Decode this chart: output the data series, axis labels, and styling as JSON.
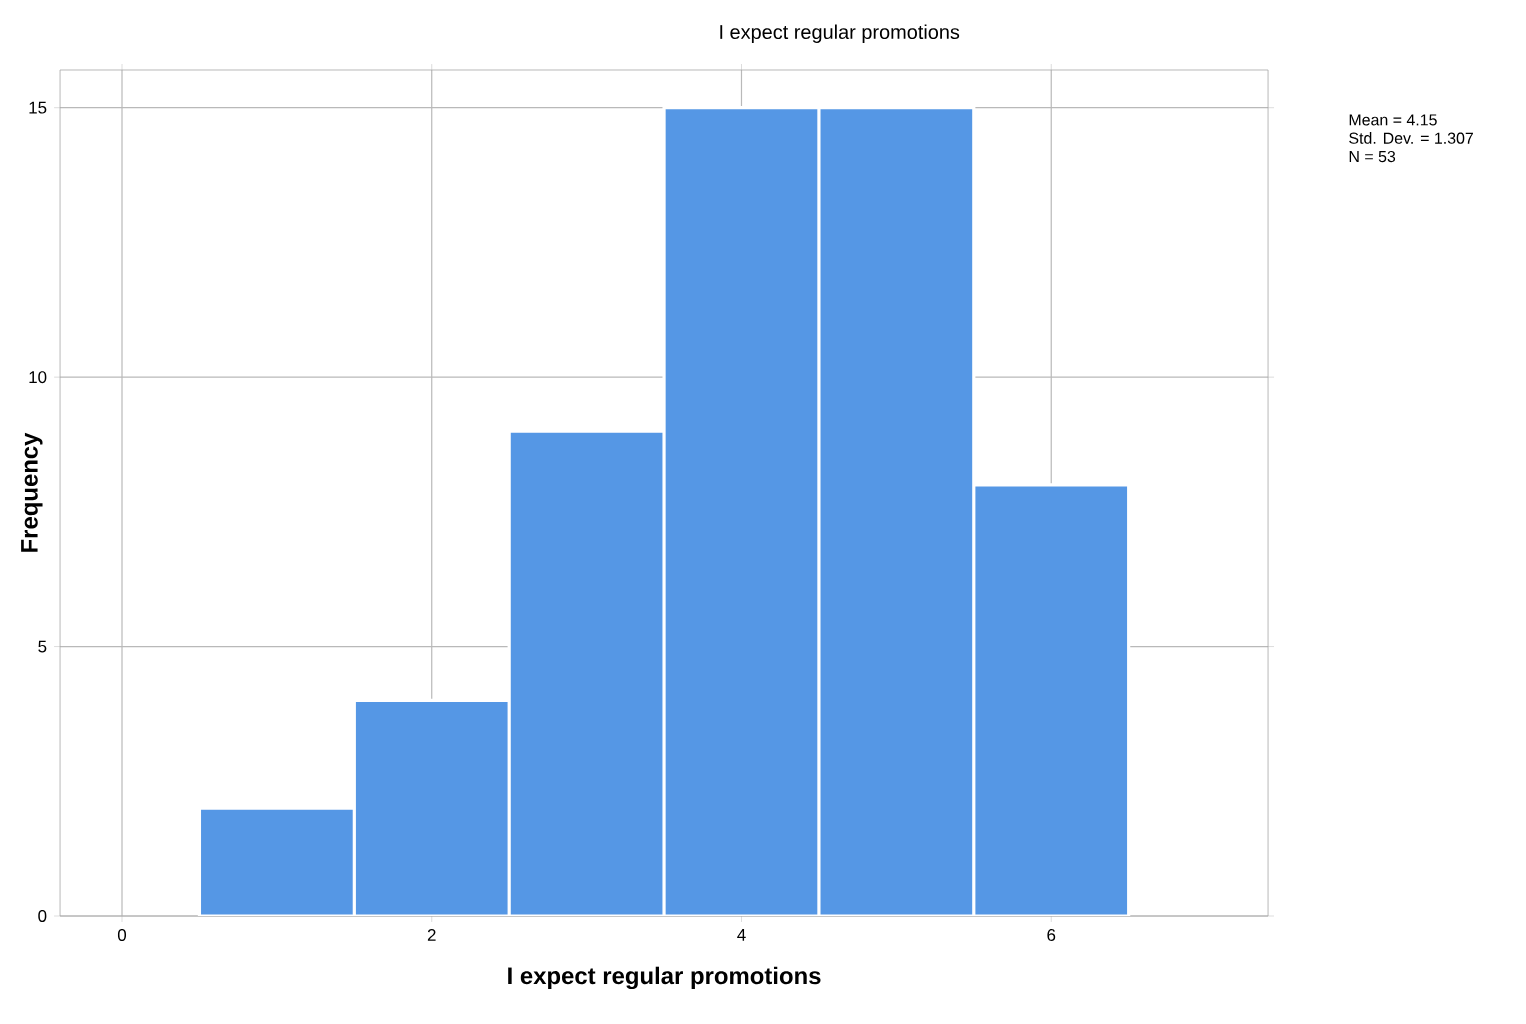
{
  "chart_data": {
    "type": "histogram",
    "title": "I expect regular promotions",
    "xlabel": "I expect regular promotions",
    "ylabel": "Frequency",
    "bins": [
      0.5,
      1.5,
      2.5,
      3.5,
      4.5,
      5.5,
      6.5
    ],
    "values": [
      2,
      4,
      9,
      15,
      15,
      8
    ],
    "color": "#5597e5",
    "xlim": [
      -0.4,
      7.4
    ],
    "ylim": [
      0,
      15.7
    ],
    "xticks": [
      0,
      2,
      4,
      6
    ],
    "yticks": [
      0,
      5,
      10,
      15
    ],
    "grid": true,
    "annotations": [
      "Mean = 4.15",
      "Std. Dev. = 1.307",
      "N = 53"
    ]
  }
}
